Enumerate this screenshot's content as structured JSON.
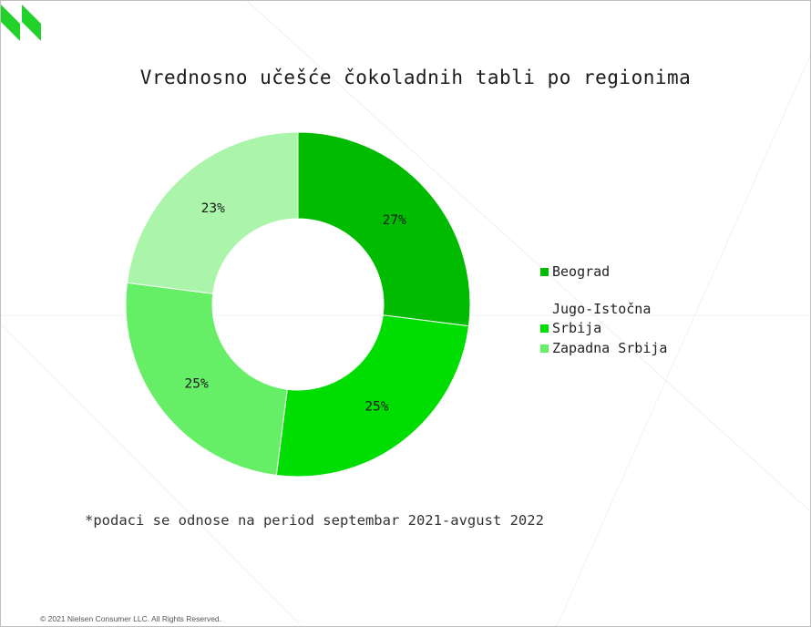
{
  "title": "Vrednosno učešće čokoladnih tabli po regionima",
  "footnote": "*podaci se odnose na period septembar 2021-avgust 2022",
  "copyright": "© 2021 Nielsen Consumer LLC. All Rights Reserved.",
  "colors": {
    "brand": "#23d12b",
    "background": "#ffffff"
  },
  "logo": "nielsen-logo",
  "chart_data": {
    "type": "donut",
    "title": "Vrednosno učešće čokoladnih tabli po regionima",
    "legend_position": "right",
    "slices": [
      {
        "name": "Beograd",
        "value": 27,
        "label": "27%",
        "color": "#00bb00"
      },
      {
        "name": "Jugo-Istočna Srbija",
        "value": 25,
        "label": "25%",
        "color": "#00dd00"
      },
      {
        "name": "Zapadna Srbija",
        "value": 25,
        "label": "25%",
        "color": "#66ef66"
      },
      {
        "name": "",
        "value": 23,
        "label": "23%",
        "color": "#abf5ab"
      }
    ],
    "legend": [
      {
        "label": "Beograd",
        "color": "#00bb00"
      },
      {
        "label": "Jugo-Istočna Srbija",
        "color": "#00dd00"
      },
      {
        "label": "Zapadna Srbija",
        "color": "#66ef66"
      }
    ]
  }
}
